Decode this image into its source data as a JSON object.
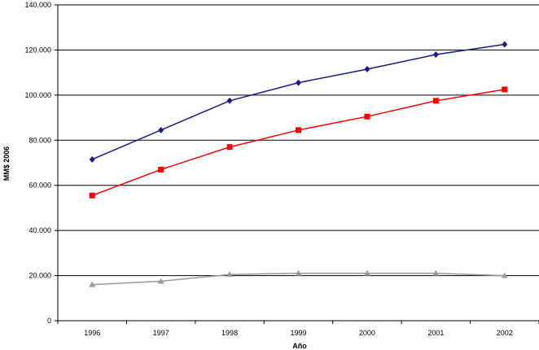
{
  "chart_data": {
    "type": "line",
    "title": "",
    "xlabel": "Año",
    "ylabel": "MM$ 2006",
    "categories": [
      "1996",
      "1997",
      "1998",
      "1999",
      "2000",
      "2001",
      "2002"
    ],
    "ylim": [
      0,
      140000
    ],
    "yticks": [
      0,
      20000,
      40000,
      60000,
      80000,
      100000,
      120000,
      140000
    ],
    "ytick_labels": [
      "0",
      "20.000",
      "40.000",
      "60.000",
      "80.000",
      "100.000",
      "120.000",
      "140.000"
    ],
    "grid": "horizontal",
    "legend": "none",
    "series": [
      {
        "color": "#1a1a8c",
        "marker": "diamond",
        "values": [
          71500,
          84500,
          97500,
          105500,
          111500,
          118000,
          122500
        ]
      },
      {
        "color": "#ff0000",
        "marker": "square",
        "values": [
          55500,
          67000,
          77000,
          84500,
          90500,
          97500,
          102500
        ]
      },
      {
        "color": "#999999",
        "marker": "triangle",
        "values": [
          16000,
          17500,
          20500,
          21000,
          21000,
          21000,
          20000
        ]
      }
    ]
  }
}
